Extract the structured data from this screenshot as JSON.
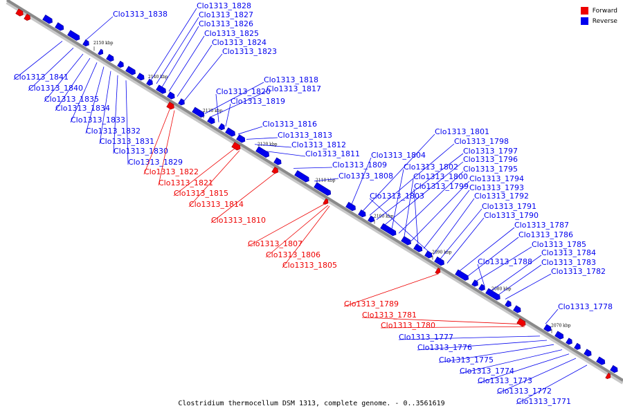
{
  "caption": "Clostridium thermocellum DSM 1313, complete genome. - 0..3561619",
  "legend": [
    {
      "label": "Forward",
      "color": "#ee0000"
    },
    {
      "label": "Reverse",
      "color": "#0000ee"
    }
  ],
  "colors": {
    "forward": "#ee0000",
    "reverse": "#0000ee",
    "axis": "#8a8a8a"
  },
  "ticks": [
    "2150 kbp",
    "2140 kbp",
    "2130 kbp",
    "2120 kbp",
    "2110 kbp",
    "2100 kbp",
    "2090 kbp",
    "2080 kbp",
    "2070 kbp"
  ],
  "labels_upper": [
    "Clo1313_1838",
    "Clo1313_1828",
    "Clo1313_1827",
    "Clo1313_1826",
    "Clo1313_1825",
    "Clo1313_1824",
    "Clo1313_1823",
    "Clo1313_1818",
    "Clo1313_1817",
    "Clo1313_1820",
    "Clo1313_1819",
    "Clo1313_1816",
    "Clo1313_1813",
    "Clo1313_1812",
    "Clo1313_1811",
    "Clo1313_1804",
    "Clo1313_1809",
    "Clo1313_1808",
    "Clo1313_1801",
    "Clo1313_1798",
    "Clo1313_1797",
    "Clo1313_1796",
    "Clo1313_1802",
    "Clo1313_1795",
    "Clo1313_1800",
    "Clo1313_1794",
    "Clo1313_1799",
    "Clo1313_1793",
    "Clo1313_1803",
    "Clo1313_1792",
    "Clo1313_1791",
    "Clo1313_1790",
    "Clo1313_1787",
    "Clo1313_1786",
    "Clo1313_1785",
    "Clo1313_1788",
    "Clo1313_1784",
    "Clo1313_1783",
    "Clo1313_1782",
    "Clo1313_1778"
  ],
  "labels_lower_blue": [
    "Clo1313_1841",
    "Clo1313_1840",
    "Clo1313_1835",
    "Clo1313_1834",
    "Clo1313_1833",
    "Clo1313_1832",
    "Clo1313_1831",
    "Clo1313_1830",
    "Clo1313_1829",
    "Clo1313_1777",
    "Clo1313_1776",
    "Clo1313_1775",
    "Clo1313_1774",
    "Clo1313_1773",
    "Clo1313_1772",
    "Clo1313_1771"
  ],
  "labels_lower_red": [
    "Clo1313_1822",
    "Clo1313_1821",
    "Clo1313_1815",
    "Clo1313_1814",
    "Clo1313_1810",
    "Clo1313_1807",
    "Clo1313_1806",
    "Clo1313_1805",
    "Clo1313_1789",
    "Clo1313_1781",
    "Clo1313_1780"
  ]
}
